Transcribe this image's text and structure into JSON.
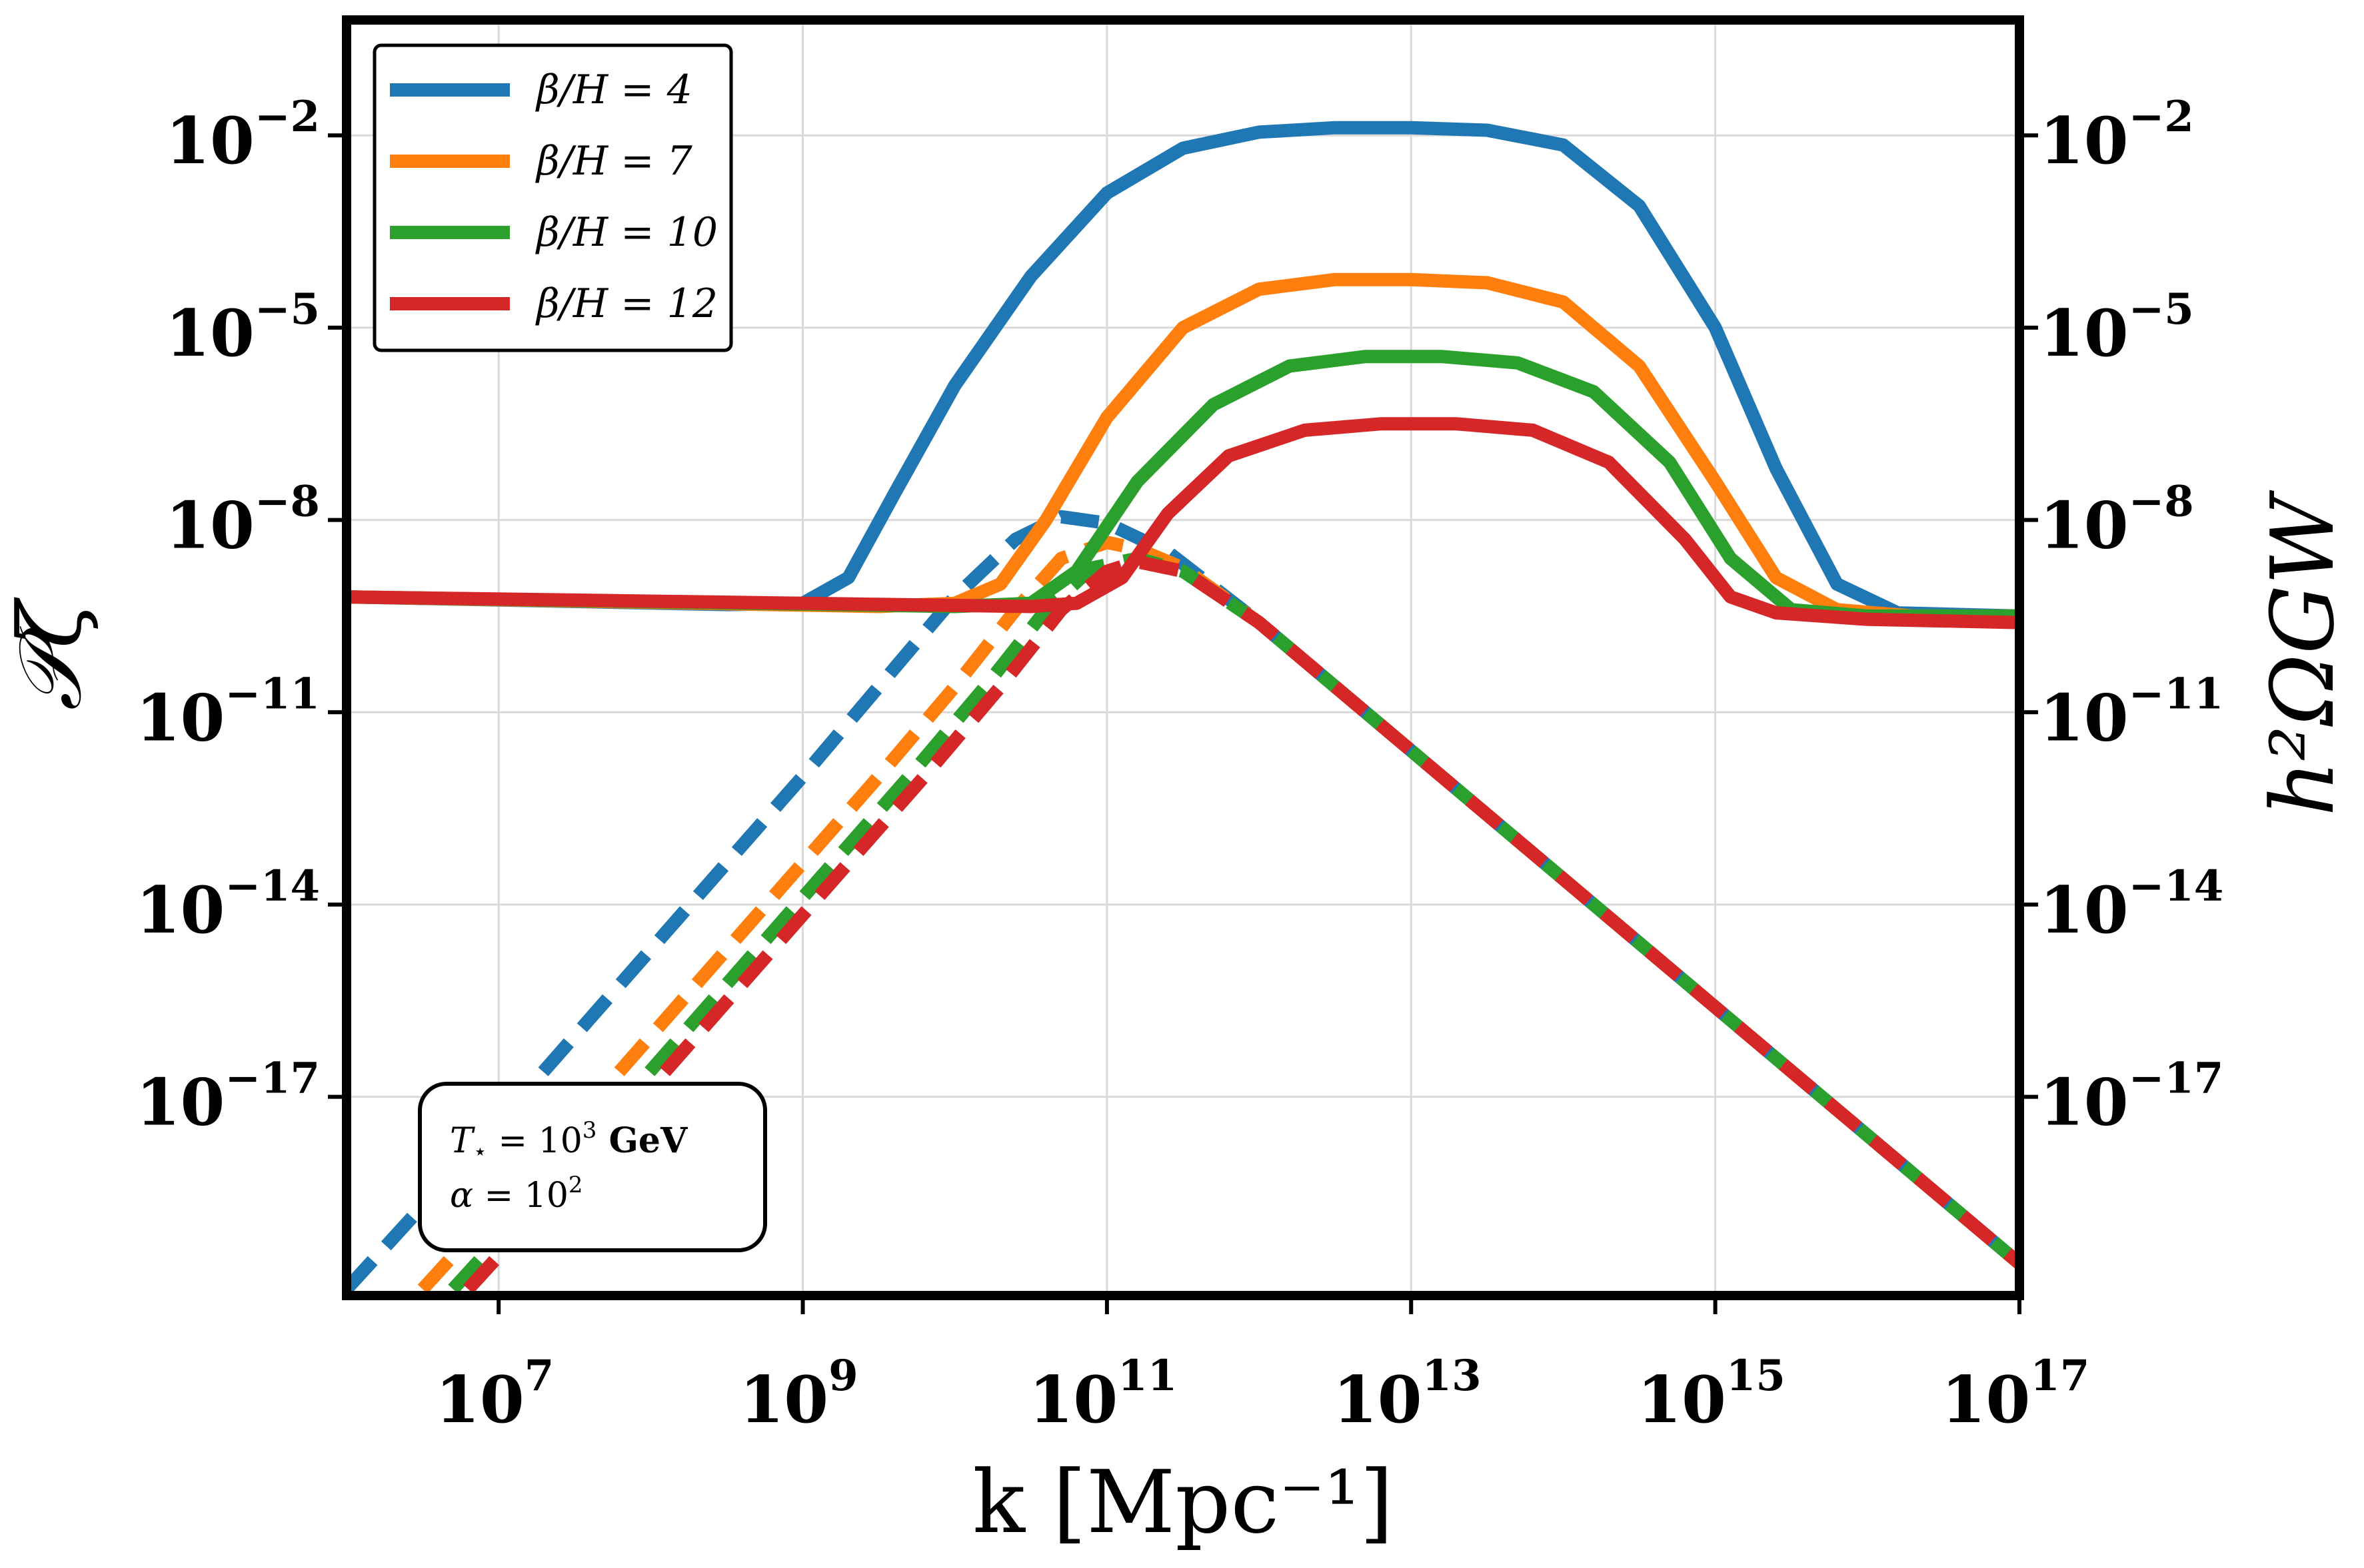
{
  "chart_data": {
    "type": "line",
    "xlabel": "k [Mpc⁻¹]",
    "ylabel_left": "𝒫ζ",
    "ylabel_right": "h²ΩGW",
    "xscale": "log",
    "yscale": "log",
    "xlim_log10": [
      6,
      17
    ],
    "ylim_log10": [
      -20.1,
      -0.2
    ],
    "x_ticks": [
      {
        "base": "10",
        "exp": "7",
        "value": 7
      },
      {
        "base": "10",
        "exp": "9",
        "value": 9
      },
      {
        "base": "10",
        "exp": "11",
        "value": 11
      },
      {
        "base": "10",
        "exp": "13",
        "value": 13
      },
      {
        "base": "10",
        "exp": "15",
        "value": 15
      },
      {
        "base": "10",
        "exp": "17",
        "value": 17
      }
    ],
    "y_ticks": [
      {
        "base": "10",
        "exp": "−2",
        "value": -2
      },
      {
        "base": "10",
        "exp": "−5",
        "value": -5
      },
      {
        "base": "10",
        "exp": "−8",
        "value": -8
      },
      {
        "base": "10",
        "exp": "−11",
        "value": -11
      },
      {
        "base": "10",
        "exp": "−14",
        "value": -14
      },
      {
        "base": "10",
        "exp": "−17",
        "value": -17
      }
    ],
    "grid": true,
    "legend_position": "top-left",
    "annotation": {
      "line1_prefix": "T",
      "line1_sub": "⋆",
      "line1_eq": " = 10",
      "line1_exp": "3",
      "line1_unit": " GeV",
      "line2_prefix": "α",
      "line2_eq": " = 10",
      "line2_exp": "2"
    },
    "series": [
      {
        "name": "β/H = 4",
        "color": "#1f77b4",
        "solid_log10": [
          [
            6,
            -9.2
          ],
          [
            8.5,
            -9.32
          ],
          [
            9.0,
            -9.3
          ],
          [
            9.3,
            -8.9
          ],
          [
            9.6,
            -7.6
          ],
          [
            10.0,
            -5.9
          ],
          [
            10.5,
            -4.2
          ],
          [
            11.0,
            -2.9
          ],
          [
            11.5,
            -2.2
          ],
          [
            12.0,
            -1.95
          ],
          [
            12.5,
            -1.88
          ],
          [
            13.0,
            -1.88
          ],
          [
            13.5,
            -1.92
          ],
          [
            14.0,
            -2.15
          ],
          [
            14.5,
            -3.1
          ],
          [
            15.0,
            -5.0
          ],
          [
            15.4,
            -7.2
          ],
          [
            15.8,
            -9.0
          ],
          [
            16.2,
            -9.45
          ],
          [
            17,
            -9.5
          ]
        ],
        "dashed_log10": [
          [
            6,
            -20.0
          ],
          [
            7.0,
            -17.4
          ],
          [
            8.0,
            -14.7
          ],
          [
            9.0,
            -12.0
          ],
          [
            9.5,
            -10.6
          ],
          [
            10.0,
            -9.2
          ],
          [
            10.4,
            -8.3
          ],
          [
            10.7,
            -7.95
          ],
          [
            11.0,
            -8.05
          ],
          [
            11.4,
            -8.5
          ],
          [
            12.0,
            -9.6
          ],
          [
            13.0,
            -11.6
          ],
          [
            14.0,
            -13.6
          ],
          [
            15.0,
            -15.6
          ],
          [
            16.0,
            -17.6
          ],
          [
            17,
            -19.6
          ]
        ]
      },
      {
        "name": "β/H = 7",
        "color": "#ff7f0e",
        "solid_log10": [
          [
            6,
            -9.2
          ],
          [
            9.5,
            -9.35
          ],
          [
            10.0,
            -9.3
          ],
          [
            10.3,
            -9.0
          ],
          [
            10.6,
            -8.0
          ],
          [
            11.0,
            -6.4
          ],
          [
            11.5,
            -5.0
          ],
          [
            12.0,
            -4.4
          ],
          [
            12.5,
            -4.25
          ],
          [
            13.0,
            -4.25
          ],
          [
            13.5,
            -4.3
          ],
          [
            14.0,
            -4.6
          ],
          [
            14.5,
            -5.6
          ],
          [
            15.0,
            -7.4
          ],
          [
            15.4,
            -8.9
          ],
          [
            15.8,
            -9.4
          ],
          [
            16.3,
            -9.5
          ],
          [
            17,
            -9.5
          ]
        ],
        "dashed_log10": [
          [
            6.5,
            -20.0
          ],
          [
            7.5,
            -17.4
          ],
          [
            8.5,
            -14.7
          ],
          [
            9.5,
            -12.0
          ],
          [
            10.0,
            -10.6
          ],
          [
            10.4,
            -9.4
          ],
          [
            10.7,
            -8.6
          ],
          [
            11.0,
            -8.35
          ],
          [
            11.2,
            -8.45
          ],
          [
            11.5,
            -8.75
          ],
          [
            12.0,
            -9.6
          ],
          [
            13.0,
            -11.6
          ],
          [
            14.0,
            -13.6
          ],
          [
            15.0,
            -15.6
          ],
          [
            16.0,
            -17.6
          ],
          [
            17,
            -19.6
          ]
        ]
      },
      {
        "name": "β/H = 10",
        "color": "#2ca02c",
        "solid_log10": [
          [
            6,
            -9.2
          ],
          [
            10.0,
            -9.35
          ],
          [
            10.5,
            -9.3
          ],
          [
            10.8,
            -8.8
          ],
          [
            11.2,
            -7.4
          ],
          [
            11.7,
            -6.2
          ],
          [
            12.2,
            -5.6
          ],
          [
            12.7,
            -5.45
          ],
          [
            13.2,
            -5.45
          ],
          [
            13.7,
            -5.55
          ],
          [
            14.2,
            -6.0
          ],
          [
            14.7,
            -7.1
          ],
          [
            15.1,
            -8.6
          ],
          [
            15.5,
            -9.4
          ],
          [
            16.0,
            -9.5
          ],
          [
            17,
            -9.5
          ]
        ],
        "dashed_log10": [
          [
            6.7,
            -20.0
          ],
          [
            7.7,
            -17.4
          ],
          [
            8.7,
            -14.7
          ],
          [
            9.7,
            -12.0
          ],
          [
            10.2,
            -10.6
          ],
          [
            10.6,
            -9.4
          ],
          [
            10.9,
            -8.75
          ],
          [
            11.2,
            -8.6
          ],
          [
            11.5,
            -8.8
          ],
          [
            12.0,
            -9.6
          ],
          [
            13.0,
            -11.6
          ],
          [
            14.0,
            -13.6
          ],
          [
            15.0,
            -15.6
          ],
          [
            16.0,
            -17.6
          ],
          [
            17,
            -19.6
          ]
        ]
      },
      {
        "name": "β/H = 12",
        "color": "#d62728",
        "solid_log10": [
          [
            6,
            -9.2
          ],
          [
            10.5,
            -9.35
          ],
          [
            10.8,
            -9.3
          ],
          [
            11.1,
            -8.9
          ],
          [
            11.4,
            -7.9
          ],
          [
            11.8,
            -7.0
          ],
          [
            12.3,
            -6.6
          ],
          [
            12.8,
            -6.5
          ],
          [
            13.3,
            -6.5
          ],
          [
            13.8,
            -6.6
          ],
          [
            14.3,
            -7.1
          ],
          [
            14.8,
            -8.3
          ],
          [
            15.1,
            -9.2
          ],
          [
            15.4,
            -9.45
          ],
          [
            16.0,
            -9.55
          ],
          [
            17,
            -9.6
          ]
        ],
        "dashed_log10": [
          [
            6.8,
            -20.0
          ],
          [
            7.8,
            -17.4
          ],
          [
            8.8,
            -14.7
          ],
          [
            9.8,
            -12.0
          ],
          [
            10.3,
            -10.6
          ],
          [
            10.7,
            -9.4
          ],
          [
            11.0,
            -8.8
          ],
          [
            11.2,
            -8.65
          ],
          [
            11.5,
            -8.8
          ],
          [
            12.0,
            -9.6
          ],
          [
            13.0,
            -11.6
          ],
          [
            14.0,
            -13.6
          ],
          [
            15.0,
            -15.6
          ],
          [
            16.0,
            -17.6
          ],
          [
            17,
            -19.6
          ]
        ]
      }
    ]
  }
}
